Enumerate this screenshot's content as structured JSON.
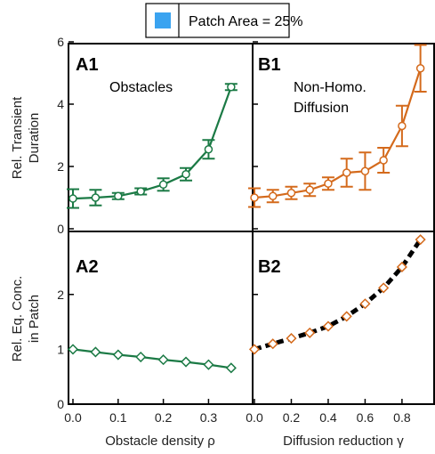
{
  "legend": {
    "label": "Patch Area = 25%",
    "color": "#3aa3f0"
  },
  "colors": {
    "green": "#1b7a45",
    "orange": "#d46a1c",
    "black": "#000000"
  },
  "chart_data": [
    {
      "id": "A1",
      "type": "line",
      "panel_label": "A1",
      "annotation": "Obstacles",
      "ylabel": [
        "Rel. Transient",
        "Duration"
      ],
      "xlim": [
        0,
        0.37
      ],
      "ylim": [
        0,
        6
      ],
      "yticks": [
        0,
        2,
        4,
        6
      ],
      "x": [
        0.0,
        0.05,
        0.1,
        0.15,
        0.2,
        0.25,
        0.3,
        0.35
      ],
      "series": [
        {
          "values": [
            0.97,
            1.0,
            1.05,
            1.2,
            1.42,
            1.75,
            2.55,
            4.55
          ],
          "errors": [
            0.3,
            0.25,
            0.1,
            0.1,
            0.2,
            0.2,
            0.3,
            0.1
          ],
          "marker": "circle",
          "color": "#1b7a45"
        }
      ]
    },
    {
      "id": "B1",
      "type": "line",
      "panel_label": "B1",
      "annotation": [
        "Non-Homo.",
        "Diffusion"
      ],
      "xlim": [
        0,
        0.95
      ],
      "ylim": [
        0,
        6
      ],
      "x": [
        0.0,
        0.1,
        0.2,
        0.3,
        0.4,
        0.5,
        0.6,
        0.7,
        0.8,
        0.9
      ],
      "series": [
        {
          "values": [
            1.0,
            1.05,
            1.15,
            1.25,
            1.45,
            1.8,
            1.85,
            2.2,
            3.3,
            5.15
          ],
          "errors": [
            0.3,
            0.2,
            0.2,
            0.2,
            0.2,
            0.45,
            0.6,
            0.4,
            0.65,
            0.75
          ],
          "marker": "circle",
          "color": "#d46a1c"
        }
      ]
    },
    {
      "id": "A2",
      "type": "line",
      "panel_label": "A2",
      "ylabel": [
        "Rel. Eq. Conc.",
        "in Patch"
      ],
      "xlabel": "Obstacle density ρ",
      "xlim": [
        0,
        0.37
      ],
      "ylim": [
        0,
        3.1
      ],
      "yticks": [
        0,
        1,
        2
      ],
      "xticks": [
        "0.0",
        "0.1",
        "0.2",
        "0.3"
      ],
      "xtick_values": [
        0.0,
        0.1,
        0.2,
        0.3
      ],
      "x": [
        0.0,
        0.05,
        0.1,
        0.15,
        0.2,
        0.25,
        0.3,
        0.35
      ],
      "series": [
        {
          "values": [
            1.0,
            0.95,
            0.9,
            0.86,
            0.81,
            0.77,
            0.72,
            0.66
          ],
          "marker": "diamond",
          "color": "#1b7a45"
        }
      ]
    },
    {
      "id": "B2",
      "type": "line",
      "panel_label": "B2",
      "xlabel": "Diffusion reduction γ",
      "xlim": [
        0,
        0.95
      ],
      "ylim": [
        0,
        3.1
      ],
      "xticks": [
        "0.0",
        "0.2",
        "0.4",
        "0.6",
        "0.8"
      ],
      "xtick_values": [
        0.0,
        0.2,
        0.4,
        0.6,
        0.8
      ],
      "x": [
        0.0,
        0.1,
        0.2,
        0.3,
        0.4,
        0.5,
        0.6,
        0.7,
        0.8,
        0.9
      ],
      "series": [
        {
          "values": [
            1.0,
            1.1,
            1.2,
            1.3,
            1.42,
            1.6,
            1.83,
            2.12,
            2.5,
            3.0
          ],
          "marker": "diamond",
          "color": "#d46a1c",
          "fit_line_color": "#000000"
        }
      ]
    }
  ]
}
